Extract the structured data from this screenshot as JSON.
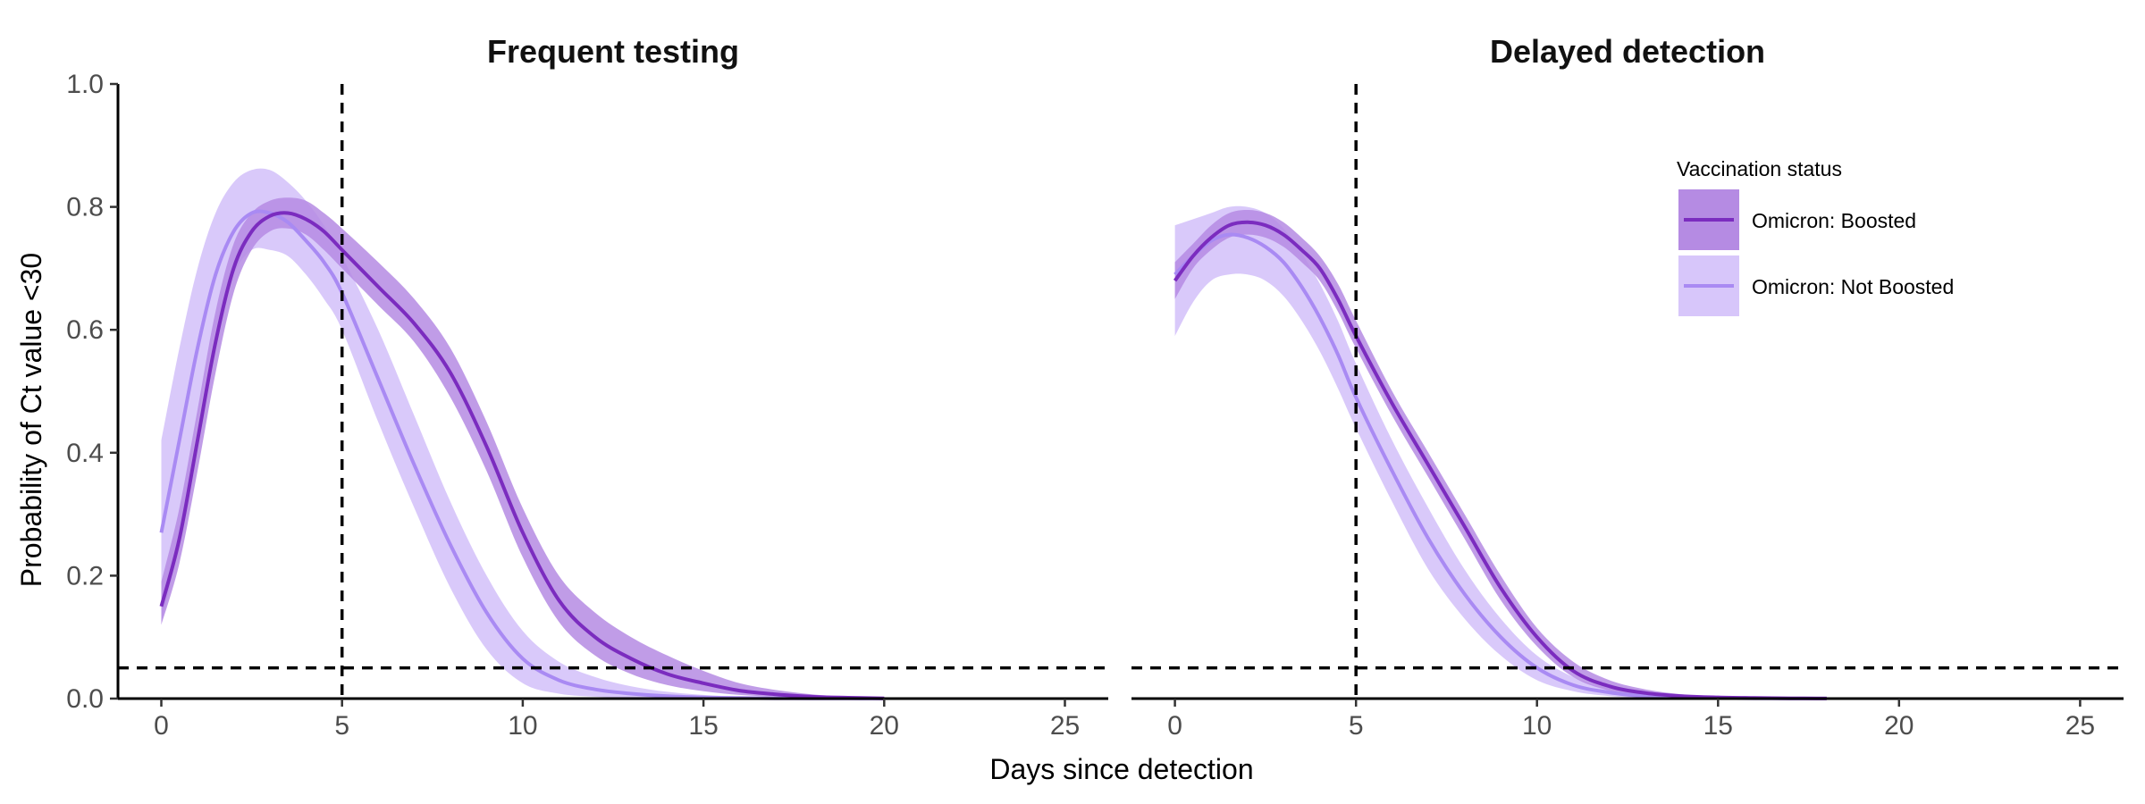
{
  "chart_data": {
    "type": "line",
    "xlabel": "Days since detection",
    "ylabel": "Probability of Ct value <30",
    "xlim": [
      -1.2,
      26.2
    ],
    "ylim": [
      0,
      1
    ],
    "x_ticks": [
      0,
      5,
      10,
      15,
      20,
      25
    ],
    "y_ticks": [
      "0.0",
      "0.2",
      "0.4",
      "0.6",
      "0.8",
      "1.0"
    ],
    "reference_lines": {
      "vertical_x": 5,
      "horizontal_y": 0.05
    },
    "legend": {
      "title": "Vaccination status",
      "position": "top-right",
      "entries": [
        {
          "label": "Omicron: Boosted",
          "line_color": "#7B2CBF",
          "ribbon_color": "#B58BE3"
        },
        {
          "label": "Omicron: Not Boosted",
          "line_color": "#A98AF3",
          "ribbon_color": "#D7C6FA"
        }
      ]
    },
    "panels": [
      {
        "title": "Frequent testing",
        "series": [
          {
            "name": "Omicron: Boosted",
            "x": [
              0,
              0.5,
              1,
              1.5,
              2,
              2.5,
              3,
              3.5,
              4,
              4.5,
              5,
              6,
              7,
              8,
              9,
              10,
              11,
              12,
              13,
              14,
              15,
              16,
              17,
              18,
              19,
              20
            ],
            "y": [
              0.15,
              0.26,
              0.42,
              0.58,
              0.7,
              0.76,
              0.785,
              0.79,
              0.78,
              0.76,
              0.73,
              0.67,
              0.61,
              0.53,
              0.41,
              0.27,
              0.16,
              0.1,
              0.065,
              0.04,
              0.025,
              0.013,
              0.007,
              0.003,
              0.0015,
              0.0005
            ],
            "lower": [
              0.12,
              0.22,
              0.37,
              0.53,
              0.66,
              0.73,
              0.76,
              0.765,
              0.755,
              0.73,
              0.7,
              0.64,
              0.58,
              0.49,
              0.37,
              0.23,
              0.125,
              0.07,
              0.04,
              0.022,
              0.012,
              0.006,
              0.003,
              0.001,
              0.0005,
              0.0002
            ],
            "upper": [
              0.19,
              0.31,
              0.47,
              0.63,
              0.74,
              0.79,
              0.81,
              0.815,
              0.81,
              0.79,
              0.765,
              0.71,
              0.65,
              0.57,
              0.45,
              0.31,
              0.2,
              0.14,
              0.1,
              0.07,
              0.045,
              0.025,
              0.014,
              0.007,
              0.003,
              0.001
            ]
          },
          {
            "name": "Omicron: Not Boosted",
            "x": [
              0,
              0.5,
              1,
              1.5,
              2,
              2.5,
              3,
              3.5,
              4,
              4.5,
              5,
              6,
              7,
              8,
              9,
              10,
              11,
              12,
              13,
              14,
              15,
              16,
              17,
              18,
              19,
              20
            ],
            "y": [
              0.27,
              0.42,
              0.57,
              0.69,
              0.76,
              0.79,
              0.79,
              0.775,
              0.745,
              0.71,
              0.66,
              0.52,
              0.38,
              0.25,
              0.14,
              0.065,
              0.03,
              0.015,
              0.008,
              0.004,
              0.002,
              0.001,
              0.0005,
              0.0002,
              0.0001,
              0.0
            ],
            "lower": [
              0.12,
              0.26,
              0.45,
              0.6,
              0.69,
              0.73,
              0.73,
              0.72,
              0.69,
              0.65,
              0.6,
              0.45,
              0.31,
              0.18,
              0.08,
              0.025,
              0.008,
              0.003,
              0.001,
              0.0005,
              0.0002,
              0.0001,
              0.0,
              0.0,
              0.0,
              0.0
            ],
            "upper": [
              0.42,
              0.57,
              0.7,
              0.79,
              0.84,
              0.86,
              0.86,
              0.84,
              0.81,
              0.77,
              0.72,
              0.6,
              0.46,
              0.32,
              0.2,
              0.11,
              0.06,
              0.035,
              0.02,
              0.011,
              0.006,
              0.003,
              0.0015,
              0.0007,
              0.0003,
              0.0001
            ]
          }
        ]
      },
      {
        "title": "Delayed detection",
        "series": [
          {
            "name": "Omicron: Boosted",
            "x": [
              0,
              0.5,
              1,
              1.5,
              2,
              2.5,
              3,
              3.5,
              4,
              4.5,
              5,
              6,
              7,
              8,
              9,
              10,
              11,
              12,
              13,
              14,
              15,
              16,
              17,
              18
            ],
            "y": [
              0.68,
              0.72,
              0.75,
              0.77,
              0.775,
              0.77,
              0.755,
              0.73,
              0.7,
              0.65,
              0.59,
              0.48,
              0.38,
              0.28,
              0.18,
              0.1,
              0.045,
              0.02,
              0.009,
              0.004,
              0.002,
              0.001,
              0.0005,
              0.0002
            ],
            "lower": [
              0.65,
              0.7,
              0.73,
              0.75,
              0.755,
              0.75,
              0.735,
              0.71,
              0.68,
              0.63,
              0.57,
              0.46,
              0.36,
              0.26,
              0.16,
              0.085,
              0.035,
              0.013,
              0.005,
              0.002,
              0.001,
              0.0004,
              0.0002,
              0.0001
            ],
            "upper": [
              0.71,
              0.74,
              0.77,
              0.79,
              0.795,
              0.79,
              0.775,
              0.75,
              0.72,
              0.675,
              0.615,
              0.5,
              0.4,
              0.3,
              0.2,
              0.115,
              0.06,
              0.03,
              0.015,
              0.007,
              0.003,
              0.0015,
              0.0007,
              0.0003
            ]
          },
          {
            "name": "Omicron: Not Boosted",
            "x": [
              0,
              0.5,
              1,
              1.5,
              2,
              2.5,
              3,
              3.5,
              4,
              4.5,
              5,
              6,
              7,
              8,
              9,
              10,
              11,
              12,
              13,
              14,
              15,
              16,
              17,
              18
            ],
            "y": [
              0.69,
              0.72,
              0.745,
              0.755,
              0.75,
              0.735,
              0.71,
              0.67,
              0.62,
              0.56,
              0.49,
              0.37,
              0.26,
              0.17,
              0.1,
              0.05,
              0.022,
              0.01,
              0.004,
              0.002,
              0.001,
              0.0005,
              0.0002,
              0.0001
            ],
            "lower": [
              0.59,
              0.645,
              0.68,
              0.69,
              0.69,
              0.68,
              0.655,
              0.615,
              0.565,
              0.505,
              0.44,
              0.32,
              0.21,
              0.13,
              0.07,
              0.03,
              0.012,
              0.004,
              0.0015,
              0.0005,
              0.0002,
              0.0001,
              0.0,
              0.0
            ],
            "upper": [
              0.77,
              0.78,
              0.79,
              0.8,
              0.8,
              0.79,
              0.765,
              0.725,
              0.675,
              0.615,
              0.545,
              0.42,
              0.31,
              0.21,
              0.13,
              0.07,
              0.035,
              0.017,
              0.008,
              0.004,
              0.002,
              0.001,
              0.0005,
              0.0002
            ]
          }
        ]
      }
    ]
  }
}
